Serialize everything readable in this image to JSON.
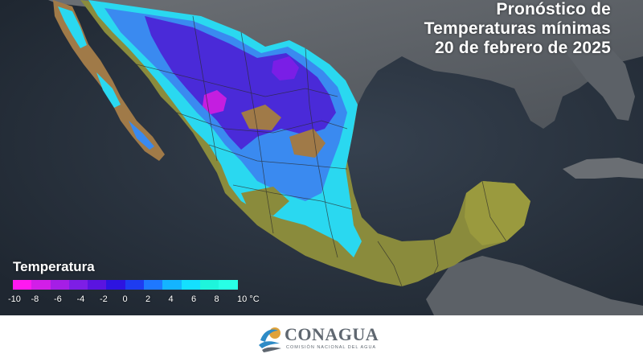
{
  "title": {
    "line1": "Pronóstico de",
    "line2": "Temperaturas mínimas",
    "line3": "20 de febrero de 2025"
  },
  "legend": {
    "title": "Temperatura",
    "unit": "°C",
    "ticks": [
      "-10",
      "-8",
      "-6",
      "-4",
      "-2",
      "0",
      "2",
      "4",
      "6",
      "8",
      "10 °C"
    ],
    "colors": [
      "#ff19f0",
      "#d21ee8",
      "#a51ee6",
      "#7d1ee6",
      "#5a14e0",
      "#2d14e0",
      "#1e3cf0",
      "#1e78ff",
      "#14b4ff",
      "#14e0ff",
      "#1ef5dc",
      "#28ffe6"
    ]
  },
  "logo": {
    "name": "CONAGUA",
    "subtitle": "COMISIÓN NACIONAL DEL AGUA",
    "colors": {
      "text": "#5f6770",
      "wave": "#2e8bc6",
      "sun": "#e0a23a"
    }
  },
  "map": {
    "colors": {
      "ocean": "#2a3340",
      "land_outside": "#5a5f66",
      "terrain_warm": "#8a8b3c",
      "terrain_tan": "#a07a48",
      "cold_cyan": "#2ad8f0",
      "cold_blue": "#3a8af0",
      "cold_indigo": "#4a2ad8",
      "cold_magenta": "#c41ee0"
    }
  }
}
